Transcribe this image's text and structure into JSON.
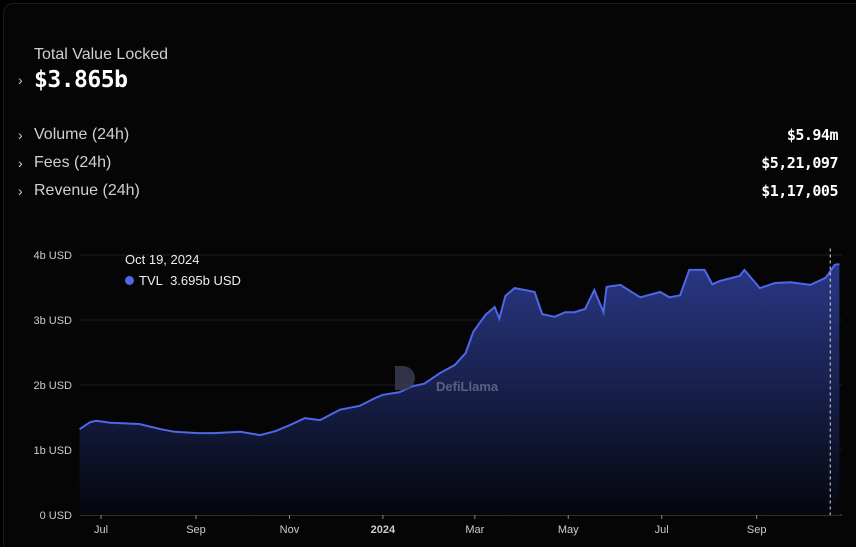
{
  "summary": {
    "tvl_label": "Total Value Locked",
    "tvl_value": "$3.865b",
    "stats": [
      {
        "label": "Volume (24h)",
        "value": "$5.94m"
      },
      {
        "label": "Fees (24h)",
        "value": "$5,21,097"
      },
      {
        "label": "Revenue (24h)",
        "value": "$1,17,005"
      }
    ]
  },
  "tooltip": {
    "date": "Oct 19, 2024",
    "series": "TVL",
    "value": "3.695b USD"
  },
  "watermark": "DefiLlama",
  "colors": {
    "line": "#4f67e8",
    "fill_top": "#2b3a8c",
    "grid": "#1e1e24"
  },
  "chart_data": {
    "type": "area",
    "title": "",
    "xlabel": "",
    "ylabel": "",
    "x_unit": "days since Jul 1, 2023",
    "ylim": [
      0,
      4
    ],
    "y_ticks": [
      {
        "v": 0,
        "label": "0 USD"
      },
      {
        "v": 1,
        "label": "1b USD"
      },
      {
        "v": 2,
        "label": "2b USD"
      },
      {
        "v": 3,
        "label": "3b USD"
      },
      {
        "v": 4,
        "label": "4b USD"
      }
    ],
    "x_ticks": [
      {
        "d": 0,
        "label": "Jul"
      },
      {
        "d": 62,
        "label": "Sep"
      },
      {
        "d": 123,
        "label": "Nov"
      },
      {
        "d": 184,
        "label": "2024",
        "bold": true
      },
      {
        "d": 244,
        "label": "Mar"
      },
      {
        "d": 305,
        "label": "May"
      },
      {
        "d": 366,
        "label": "Jul"
      },
      {
        "d": 428,
        "label": "Sep"
      }
    ],
    "hover_day": 476,
    "series": [
      {
        "name": "TVL",
        "unit": "b USD",
        "points": [
          [
            -14,
            1.32
          ],
          [
            -7,
            1.43
          ],
          [
            -3,
            1.45
          ],
          [
            6,
            1.42
          ],
          [
            25,
            1.4
          ],
          [
            39,
            1.32
          ],
          [
            48,
            1.28
          ],
          [
            63,
            1.26
          ],
          [
            74,
            1.26
          ],
          [
            91,
            1.28
          ],
          [
            104,
            1.23
          ],
          [
            114,
            1.29
          ],
          [
            123,
            1.38
          ],
          [
            133,
            1.49
          ],
          [
            143,
            1.46
          ],
          [
            156,
            1.62
          ],
          [
            169,
            1.68
          ],
          [
            179,
            1.8
          ],
          [
            184,
            1.85
          ],
          [
            195,
            1.89
          ],
          [
            203,
            1.98
          ],
          [
            211,
            2.02
          ],
          [
            221,
            2.18
          ],
          [
            231,
            2.31
          ],
          [
            238,
            2.49
          ],
          [
            243,
            2.82
          ],
          [
            251,
            3.08
          ],
          [
            257,
            3.2
          ],
          [
            260,
            3.02
          ],
          [
            264,
            3.37
          ],
          [
            270,
            3.49
          ],
          [
            277,
            3.46
          ],
          [
            283,
            3.43
          ],
          [
            288,
            3.09
          ],
          [
            296,
            3.05
          ],
          [
            303,
            3.12
          ],
          [
            309,
            3.12
          ],
          [
            316,
            3.17
          ],
          [
            322,
            3.46
          ],
          [
            328,
            3.12
          ],
          [
            330,
            3.51
          ],
          [
            339,
            3.54
          ],
          [
            352,
            3.35
          ],
          [
            365,
            3.43
          ],
          [
            371,
            3.35
          ],
          [
            378,
            3.38
          ],
          [
            384,
            3.77
          ],
          [
            394,
            3.77
          ],
          [
            399,
            3.55
          ],
          [
            404,
            3.6
          ],
          [
            417,
            3.68
          ],
          [
            420,
            3.77
          ],
          [
            430,
            3.49
          ],
          [
            440,
            3.57
          ],
          [
            450,
            3.58
          ],
          [
            463,
            3.54
          ],
          [
            473,
            3.65
          ],
          [
            479,
            3.85
          ],
          [
            482,
            3.86
          ]
        ]
      }
    ]
  }
}
